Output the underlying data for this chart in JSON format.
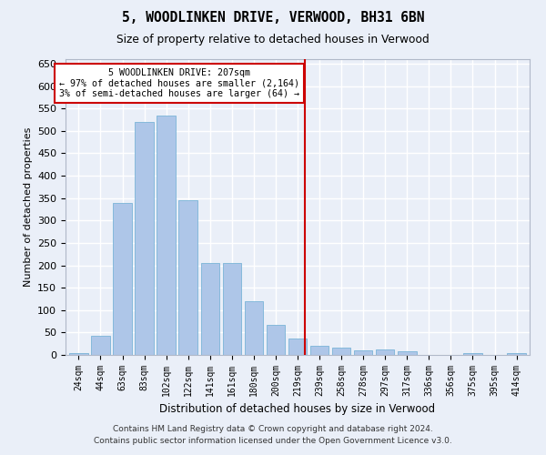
{
  "title": "5, WOODLINKEN DRIVE, VERWOOD, BH31 6BN",
  "subtitle": "Size of property relative to detached houses in Verwood",
  "xlabel": "Distribution of detached houses by size in Verwood",
  "ylabel": "Number of detached properties",
  "categories": [
    "24sqm",
    "44sqm",
    "63sqm",
    "83sqm",
    "102sqm",
    "122sqm",
    "141sqm",
    "161sqm",
    "180sqm",
    "200sqm",
    "219sqm",
    "239sqm",
    "258sqm",
    "278sqm",
    "297sqm",
    "317sqm",
    "336sqm",
    "356sqm",
    "375sqm",
    "395sqm",
    "414sqm"
  ],
  "values": [
    5,
    42,
    340,
    520,
    535,
    345,
    205,
    205,
    120,
    68,
    37,
    20,
    17,
    11,
    13,
    8,
    0,
    0,
    5,
    0,
    5
  ],
  "bar_color": "#aec6e8",
  "bar_edge_color": "#7ab4d8",
  "vline_x": 10.35,
  "vline_color": "#cc0000",
  "annotation_text": "5 WOODLINKEN DRIVE: 207sqm\n← 97% of detached houses are smaller (2,164)\n3% of semi-detached houses are larger (64) →",
  "annotation_box_color": "#cc0000",
  "ylim": [
    0,
    660
  ],
  "yticks": [
    0,
    50,
    100,
    150,
    200,
    250,
    300,
    350,
    400,
    450,
    500,
    550,
    600,
    650
  ],
  "bg_color": "#eaeff8",
  "grid_color": "#ffffff",
  "fig_bg_color": "#eaeff8",
  "footer_line1": "Contains HM Land Registry data © Crown copyright and database right 2024.",
  "footer_line2": "Contains public sector information licensed under the Open Government Licence v3.0."
}
